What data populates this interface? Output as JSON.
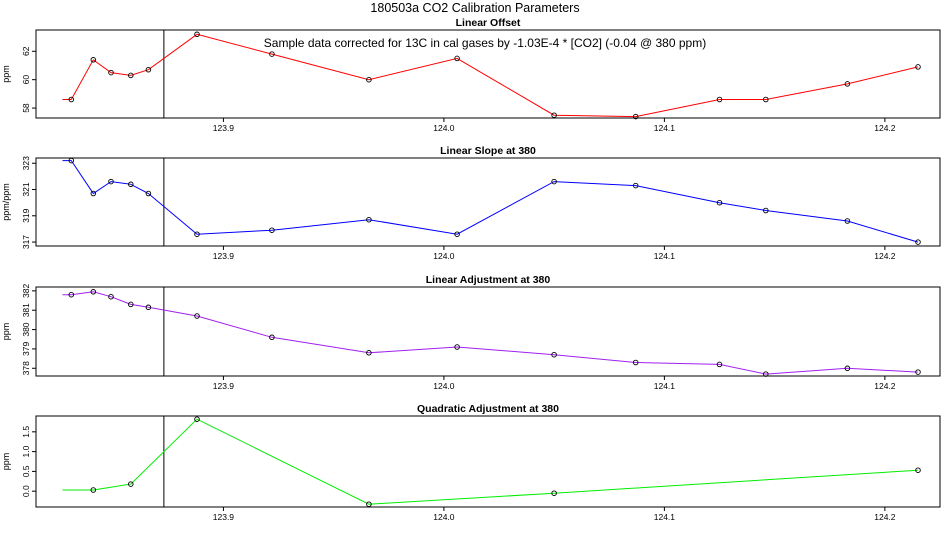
{
  "page_title": "180503a   CO2 Calibration Parameters",
  "annotation": "Sample data corrected for 13C in cal gases by -1.03E-4 * [CO2] (-0.04 @ 380 ppm)",
  "xlim": [
    123.815,
    124.225
  ],
  "x_ticks": [
    "123.9",
    "124.0",
    "124.1",
    "124.2"
  ],
  "x_tick_values": [
    123.9,
    124.0,
    124.1,
    124.2
  ],
  "marker_x": 123.873,
  "chart_data": [
    {
      "type": "line",
      "title": "Linear Offset",
      "xlabel": "",
      "ylabel": "ppm",
      "color": "#ff0000",
      "ylim": [
        57.3,
        63.5
      ],
      "y_ticks": [
        58,
        60,
        62
      ],
      "y_tick_labels": [
        "58",
        "60",
        "62"
      ],
      "x": [
        123.827,
        123.831,
        123.841,
        123.849,
        123.858,
        123.866,
        123.888,
        123.922,
        123.966,
        124.006,
        124.05,
        124.087,
        124.125,
        124.146,
        124.183,
        124.215
      ],
      "y": [
        58.6,
        58.6,
        61.4,
        60.5,
        60.3,
        60.7,
        63.2,
        61.8,
        60.0,
        61.5,
        57.5,
        57.4,
        58.6,
        58.6,
        59.7,
        60.9
      ],
      "markers": [
        false,
        true,
        true,
        true,
        true,
        true,
        true,
        true,
        true,
        true,
        true,
        true,
        true,
        true,
        true,
        true
      ]
    },
    {
      "type": "line",
      "title": "Linear Slope at 380",
      "xlabel": "",
      "ylabel": "ppm/ppm",
      "color": "#0000ff",
      "ylim": [
        316.7,
        323.4
      ],
      "y_ticks": [
        317,
        319,
        321,
        323
      ],
      "y_tick_labels": [
        "317",
        "319",
        "321",
        "323"
      ],
      "x": [
        123.827,
        123.831,
        123.841,
        123.849,
        123.858,
        123.866,
        123.888,
        123.922,
        123.966,
        124.006,
        124.05,
        124.087,
        124.125,
        124.146,
        124.183,
        124.215
      ],
      "y": [
        323.2,
        323.2,
        320.7,
        321.6,
        321.4,
        320.7,
        317.6,
        317.9,
        318.7,
        317.6,
        321.6,
        321.3,
        320.0,
        319.4,
        318.6,
        317.0
      ],
      "markers": [
        false,
        true,
        true,
        true,
        true,
        true,
        true,
        true,
        true,
        true,
        true,
        true,
        true,
        true,
        true,
        true
      ]
    },
    {
      "type": "line",
      "title": "Linear Adjustment at 380",
      "xlabel": "",
      "ylabel": "ppm",
      "color": "#a020f0",
      "ylim": [
        377.6,
        382.2
      ],
      "y_ticks": [
        378,
        379,
        380,
        381,
        382
      ],
      "y_tick_labels": [
        "378",
        "379",
        "380",
        "381",
        "382"
      ],
      "x": [
        123.827,
        123.831,
        123.841,
        123.849,
        123.858,
        123.866,
        123.888,
        123.922,
        123.966,
        124.006,
        124.05,
        124.087,
        124.125,
        124.146,
        124.183,
        124.215
      ],
      "y": [
        381.8,
        381.8,
        381.95,
        381.7,
        381.3,
        381.15,
        380.7,
        379.6,
        378.8,
        379.1,
        378.7,
        378.3,
        378.2,
        377.7,
        378.0,
        377.8
      ],
      "markers": [
        false,
        true,
        true,
        true,
        true,
        true,
        true,
        true,
        true,
        true,
        true,
        true,
        true,
        true,
        true,
        true
      ]
    },
    {
      "type": "line",
      "title": "Quadratic Adjustment at 380",
      "xlabel": "",
      "ylabel": "ppm",
      "color": "#00ee00",
      "ylim": [
        -0.4,
        1.9
      ],
      "y_ticks": [
        0.0,
        0.5,
        1.0,
        1.5
      ],
      "y_tick_labels": [
        "0.0",
        "0.5",
        "1.0",
        "1.5"
      ],
      "x": [
        123.827,
        123.841,
        123.858,
        123.888,
        123.966,
        124.05,
        124.215
      ],
      "y": [
        0.03,
        0.03,
        0.18,
        1.82,
        -0.33,
        -0.05,
        0.53
      ],
      "markers": [
        false,
        true,
        true,
        true,
        true,
        true,
        true
      ]
    }
  ]
}
